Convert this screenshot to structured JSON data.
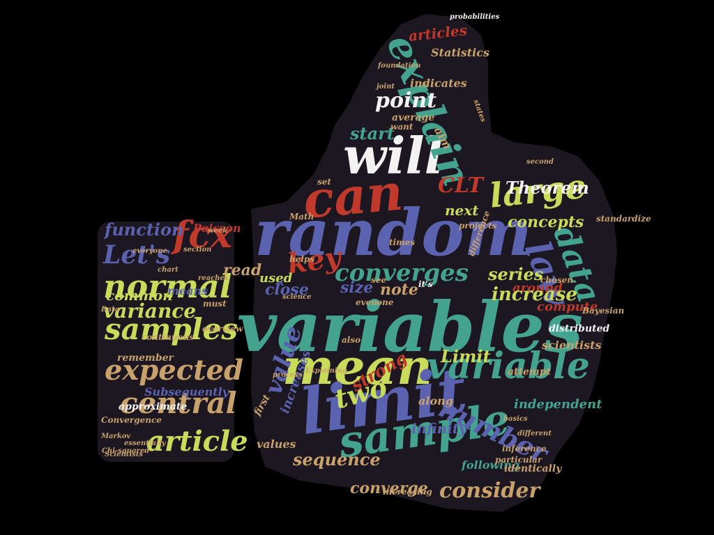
{
  "palette": {
    "background": "#000000",
    "shape_fill": "#1c1720",
    "blue": "#5b63b0",
    "green": "#43a38f",
    "lime": "#c8dc5a",
    "red": "#c0392b",
    "white": "#f2f2f2",
    "tan": "#c9a26b"
  },
  "shape": "thumbs-up",
  "words": [
    {
      "text": "random",
      "color": "blue"
    },
    {
      "text": "variables",
      "color": "green"
    },
    {
      "text": "mean",
      "color": "lime"
    },
    {
      "text": "limit",
      "color": "blue"
    },
    {
      "text": "will",
      "color": "white"
    },
    {
      "text": "can",
      "color": "red"
    },
    {
      "text": "sample",
      "color": "green"
    },
    {
      "text": "variable",
      "color": "green"
    },
    {
      "text": "explain",
      "color": "green"
    },
    {
      "text": "large",
      "color": "lime"
    },
    {
      "text": "normal",
      "color": "lime"
    },
    {
      "text": "samples",
      "color": "lime"
    },
    {
      "text": "expected",
      "color": "tan"
    },
    {
      "text": "central",
      "color": "tan"
    },
    {
      "text": "article",
      "color": "lime"
    },
    {
      "text": "fcx",
      "color": "red"
    },
    {
      "text": "Let's",
      "color": "blue"
    },
    {
      "text": "variance",
      "color": "lime"
    },
    {
      "text": "function",
      "color": "blue"
    },
    {
      "text": "key",
      "color": "red"
    },
    {
      "text": "converges",
      "color": "green"
    },
    {
      "text": "law",
      "color": "blue"
    },
    {
      "text": "data",
      "color": "green"
    },
    {
      "text": "two",
      "color": "lime"
    },
    {
      "text": "number",
      "color": "blue"
    },
    {
      "text": "Theorem",
      "color": "white"
    },
    {
      "text": "CLT",
      "color": "red"
    },
    {
      "text": "point",
      "color": "white"
    },
    {
      "text": "articles",
      "color": "red"
    },
    {
      "text": "Statistics",
      "color": "tan"
    },
    {
      "text": "indicates",
      "color": "tan"
    },
    {
      "text": "average",
      "color": "tan"
    },
    {
      "text": "start",
      "color": "green"
    },
    {
      "text": "next",
      "color": "lime"
    },
    {
      "text": "concepts",
      "color": "lime"
    },
    {
      "text": "close",
      "color": "blue"
    },
    {
      "text": "note",
      "color": "tan"
    },
    {
      "text": "size",
      "color": "blue"
    },
    {
      "text": "series",
      "color": "lime"
    },
    {
      "text": "around",
      "color": "red"
    },
    {
      "text": "increase",
      "color": "lime"
    },
    {
      "text": "compute",
      "color": "red"
    },
    {
      "text": "distributed",
      "color": "white"
    },
    {
      "text": "scientists",
      "color": "tan"
    },
    {
      "text": "Limit",
      "color": "lime"
    },
    {
      "text": "attempt",
      "color": "tan"
    },
    {
      "text": "value",
      "color": "blue"
    },
    {
      "text": "strong",
      "color": "red"
    },
    {
      "text": "increases",
      "color": "blue"
    },
    {
      "text": "independent",
      "color": "green"
    },
    {
      "text": "along",
      "color": "tan"
    },
    {
      "text": "infinity",
      "color": "blue"
    },
    {
      "text": "sequence",
      "color": "tan"
    },
    {
      "text": "values",
      "color": "tan"
    },
    {
      "text": "following",
      "color": "green"
    },
    {
      "text": "consider",
      "color": "tan"
    },
    {
      "text": "converge",
      "color": "tan"
    },
    {
      "text": "identically",
      "color": "tan"
    },
    {
      "text": "increasing",
      "color": "tan"
    },
    {
      "text": "approximate",
      "color": "white"
    },
    {
      "text": "Subsequently",
      "color": "blue"
    },
    {
      "text": "Convergence",
      "color": "tan"
    },
    {
      "text": "remember",
      "color": "tan"
    },
    {
      "text": "essentially",
      "color": "tan"
    },
    {
      "text": "Scientists",
      "color": "tan"
    },
    {
      "text": "Chi-squared",
      "color": "tan"
    },
    {
      "text": "continuous",
      "color": "tan"
    },
    {
      "text": "overview",
      "color": "tan"
    },
    {
      "text": "common",
      "color": "lime"
    },
    {
      "text": "means",
      "color": "blue"
    },
    {
      "text": "Poisson",
      "color": "red"
    },
    {
      "text": "everyone",
      "color": "tan"
    },
    {
      "text": "reaches",
      "color": "tan"
    },
    {
      "text": "chart",
      "color": "tan"
    },
    {
      "text": "must",
      "color": "tan"
    },
    {
      "text": "used",
      "color": "lime"
    },
    {
      "text": "first",
      "color": "tan"
    },
    {
      "text": "also",
      "color": "tan"
    },
    {
      "text": "even",
      "color": "tan"
    },
    {
      "text": "one",
      "color": "tan"
    },
    {
      "text": "see",
      "color": "tan"
    },
    {
      "text": "it's",
      "color": "white"
    },
    {
      "text": "helps",
      "color": "tan"
    },
    {
      "text": "science",
      "color": "tan"
    },
    {
      "text": "times",
      "color": "tan"
    },
    {
      "text": "set",
      "color": "tan"
    },
    {
      "text": "want",
      "color": "tan"
    },
    {
      "text": "chosen",
      "color": "tan"
    },
    {
      "text": "second",
      "color": "tan"
    },
    {
      "text": "standardize",
      "color": "tan"
    },
    {
      "text": "projects",
      "color": "tan"
    },
    {
      "text": "Math",
      "color": "tan"
    },
    {
      "text": "week",
      "color": "tan"
    },
    {
      "text": "section",
      "color": "tan"
    },
    {
      "text": "Data",
      "color": "tan"
    },
    {
      "text": "process",
      "color": "tan"
    },
    {
      "text": "basics",
      "color": "tan"
    },
    {
      "text": "different",
      "color": "tan"
    },
    {
      "text": "inference",
      "color": "tan"
    },
    {
      "text": "particular",
      "color": "tan"
    },
    {
      "text": "difference",
      "color": "tan"
    },
    {
      "text": "probabilities",
      "color": "white"
    },
    {
      "text": "foundation",
      "color": "tan"
    },
    {
      "text": "joint",
      "color": "tan"
    },
    {
      "text": "aim",
      "color": "tan"
    },
    {
      "text": "states",
      "color": "tan"
    },
    {
      "text": "Bayesian",
      "color": "tan"
    },
    {
      "text": "Markov",
      "color": "tan"
    },
    {
      "text": "Explaining",
      "color": "tan"
    },
    {
      "text": "read",
      "color": "tan"
    },
    {
      "text": "x",
      "color": "blue"
    }
  ]
}
